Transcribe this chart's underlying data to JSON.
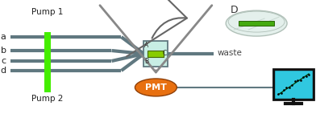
{
  "bg_color": "#ffffff",
  "pump1_label": "Pump 1",
  "pump2_label": "Pump 2",
  "channel_labels": [
    "a",
    "b",
    "c",
    "d"
  ],
  "pump_color": "#44ee00",
  "channel_color": "#607880",
  "cell_fill": "#c8eee4",
  "cell_border": "#607880",
  "cell_inner_color": "#88cc00",
  "cell_inner_border": "#446600",
  "pmt_color": "#e87010",
  "pmt_text_color": "#ffffff",
  "waste_label": "waste",
  "D_label": "D",
  "pmt_label": "PMT",
  "monitor_screen_color": "#30c8e0",
  "monitor_body_color": "#111111",
  "dish_fill": "#e4f0ec",
  "dish_edge": "#b0c0b8",
  "dish_inner_fill": "#c8ddd6",
  "dish_green": "#44aa10",
  "arrow_body": "#888888",
  "label_color": "#222222",
  "waste_color": "#444444"
}
